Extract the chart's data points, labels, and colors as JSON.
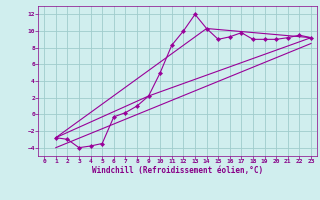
{
  "title": "",
  "xlabel": "Windchill (Refroidissement éolien,°C)",
  "bg_color": "#d0eeee",
  "grid_color": "#a0cccc",
  "line_color": "#990099",
  "text_color": "#880088",
  "xlim": [
    -0.5,
    23.5
  ],
  "ylim": [
    -5.0,
    13.0
  ],
  "xticks": [
    0,
    1,
    2,
    3,
    4,
    5,
    6,
    7,
    8,
    9,
    10,
    11,
    12,
    13,
    14,
    15,
    16,
    17,
    18,
    19,
    20,
    21,
    22,
    23
  ],
  "yticks": [
    -4,
    -2,
    0,
    2,
    4,
    6,
    8,
    10,
    12
  ],
  "series1_x": [
    1,
    2,
    3,
    4,
    5,
    6,
    7,
    8,
    9,
    10,
    11,
    12,
    13,
    14,
    15,
    16,
    17,
    18,
    19,
    20,
    21,
    22,
    23
  ],
  "series1_y": [
    -2.8,
    -3.0,
    -4.0,
    -3.8,
    -3.5,
    -0.3,
    0.2,
    1.0,
    2.2,
    5.0,
    8.3,
    10.0,
    12.0,
    10.3,
    9.0,
    9.3,
    9.8,
    9.0,
    9.0,
    9.0,
    9.2,
    9.5,
    9.2
  ],
  "series2_x": [
    1,
    9,
    23
  ],
  "series2_y": [
    -2.8,
    2.2,
    9.2
  ],
  "series3_x": [
    1,
    14,
    23
  ],
  "series3_y": [
    -2.8,
    10.3,
    9.2
  ],
  "series4_x": [
    1,
    23
  ],
  "series4_y": [
    -4.0,
    8.5
  ]
}
